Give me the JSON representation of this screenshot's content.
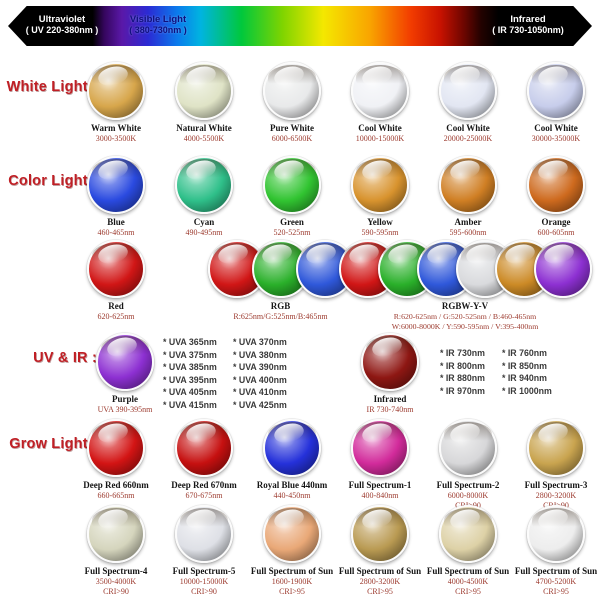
{
  "spectrum_bar": {
    "left": {
      "title": "Ultraviolet",
      "range": "( UV 220-380nm )"
    },
    "middle": {
      "title": "Visible Light",
      "range": "( 380-730nm )"
    },
    "right": {
      "title": "Infrared",
      "range": "( IR 730-1050nm)"
    }
  },
  "accent_colors": {
    "row_header_red": "#c01f25",
    "sublabel_maroon": "#9c3a2e"
  },
  "rows": [
    {
      "header": "White Light :",
      "cells": [
        {
          "name": "Warm White",
          "sub": [
            "3000-3500K"
          ],
          "colors": [
            "#d7a64b"
          ]
        },
        {
          "name": "Natural White",
          "sub": [
            "4000-5500K"
          ],
          "colors": [
            "#dfe3c6"
          ]
        },
        {
          "name": "Pure White",
          "sub": [
            "6000-6500K"
          ],
          "colors": [
            "#e8e9ea"
          ]
        },
        {
          "name": "Cool White",
          "sub": [
            "10000-15000K"
          ],
          "colors": [
            "#f0f1f5"
          ]
        },
        {
          "name": "Cool White",
          "sub": [
            "20000-25000K"
          ],
          "colors": [
            "#e2e6f2"
          ]
        },
        {
          "name": "Cool White",
          "sub": [
            "30000-35000K"
          ],
          "colors": [
            "#c7cdeb"
          ]
        }
      ]
    },
    {
      "header": "Color Light :",
      "cells": [
        {
          "name": "Blue",
          "sub": [
            "460-465nm"
          ],
          "colors": [
            "#2a4ae0"
          ]
        },
        {
          "name": "Cyan",
          "sub": [
            "490-495nm"
          ],
          "colors": [
            "#2fc08a"
          ]
        },
        {
          "name": "Green",
          "sub": [
            "520-525nm"
          ],
          "colors": [
            "#31c431"
          ]
        },
        {
          "name": "Yellow",
          "sub": [
            "590-595nm"
          ],
          "colors": [
            "#d8932e"
          ]
        },
        {
          "name": "Amber",
          "sub": [
            "595-600nm"
          ],
          "colors": [
            "#d07f24"
          ]
        },
        {
          "name": "Orange",
          "sub": [
            "600-605nm"
          ],
          "colors": [
            "#ce6a1e"
          ]
        }
      ]
    },
    {
      "header": "",
      "cells": [
        {
          "name": "Red",
          "sub": [
            "620-625nm"
          ],
          "colors": [
            "#d11616"
          ]
        },
        {
          "name": "RGB",
          "sub": [
            "R:625nm/G:525nm/B:465nm"
          ],
          "colors": [
            "#d11616",
            "#2ab02a",
            "#2f58da"
          ]
        },
        {
          "name": "RGBW-Y-V",
          "sub": [
            "R:620-625nm / G:520-525nm / B:460-465nm",
            "W:6000-8000K / Y:590-595nm / V:395-400nm"
          ],
          "colors": [
            "#d11616",
            "#2ab02a",
            "#2f58da",
            "#d9dadd",
            "#cc8a26",
            "#8d30d2"
          ]
        }
      ]
    },
    {
      "header": "UV & IR :",
      "cells": [
        {
          "name": "Purple",
          "sub": [
            "UVA 390-395nm"
          ],
          "colors": [
            "#8d30d2"
          ]
        },
        {
          "list": [
            "* UVA 365nm",
            "* UVA 375nm",
            "* UVA 385nm",
            "* UVA 395nm",
            "* UVA 405nm",
            "* UVA 415nm"
          ]
        },
        {
          "list": [
            "* UVA 370nm",
            "* UVA 380nm",
            "* UVA 390nm",
            "* UVA 400nm",
            "* UVA 410nm",
            "* UVA 425nm"
          ]
        },
        {
          "name": "Infrared",
          "sub": [
            "IR 730-740nm"
          ],
          "colors": [
            "#8e1713"
          ]
        },
        {
          "list": [
            "* IR 730nm",
            "* IR 800nm",
            "* IR 880nm",
            "* IR 970nm"
          ]
        },
        {
          "list": [
            "* IR 760nm",
            "* IR 850nm",
            "* IR 940nm",
            "* IR 1000nm"
          ]
        }
      ]
    },
    {
      "header": "Grow Light :",
      "cells": [
        {
          "name": "Deep Red 660nm",
          "sub": [
            "660-665nm"
          ],
          "colors": [
            "#d31414"
          ]
        },
        {
          "name": "Deep Red 670nm",
          "sub": [
            "670-675nm"
          ],
          "colors": [
            "#c61010"
          ]
        },
        {
          "name": "Royal Blue 440nm",
          "sub": [
            "440-450nm"
          ],
          "colors": [
            "#2531da"
          ]
        },
        {
          "name": "Full Spectrum-1",
          "sub": [
            "400-840nm"
          ],
          "colors": [
            "#d22b9b"
          ]
        },
        {
          "name": "Full Spectrum-2",
          "sub": [
            "6000-8000K",
            "CRI>90"
          ],
          "colors": [
            "#d7d7d9"
          ]
        },
        {
          "name": "Full Spectrum-3",
          "sub": [
            "2800-3200K",
            "CRI>90"
          ],
          "colors": [
            "#c9a44f"
          ]
        }
      ]
    },
    {
      "header": "",
      "cells": [
        {
          "name": "Full Spectrum-4",
          "sub": [
            "3500-4000K",
            "CRI>90"
          ],
          "colors": [
            "#d5d5bd"
          ]
        },
        {
          "name": "Full Spectrum-5",
          "sub": [
            "10000-15000K",
            "CRI>90"
          ],
          "colors": [
            "#dee0e6"
          ]
        },
        {
          "name": "Full Spectrum of Sun",
          "sub": [
            "1600-1900K",
            "CRI>95"
          ],
          "colors": [
            "#e9a877"
          ]
        },
        {
          "name": "Full Spectrum of Sun",
          "sub": [
            "2800-3200K",
            "CRI>95"
          ],
          "colors": [
            "#b99a52"
          ]
        },
        {
          "name": "Full Spectrum of Sun",
          "sub": [
            "4000-4500K",
            "CRI>95"
          ],
          "colors": [
            "#ddd1a6"
          ]
        },
        {
          "name": "Full Spectrum of Sun",
          "sub": [
            "4700-5200K",
            "CRI>95"
          ],
          "colors": [
            "#ededed"
          ]
        }
      ]
    }
  ]
}
